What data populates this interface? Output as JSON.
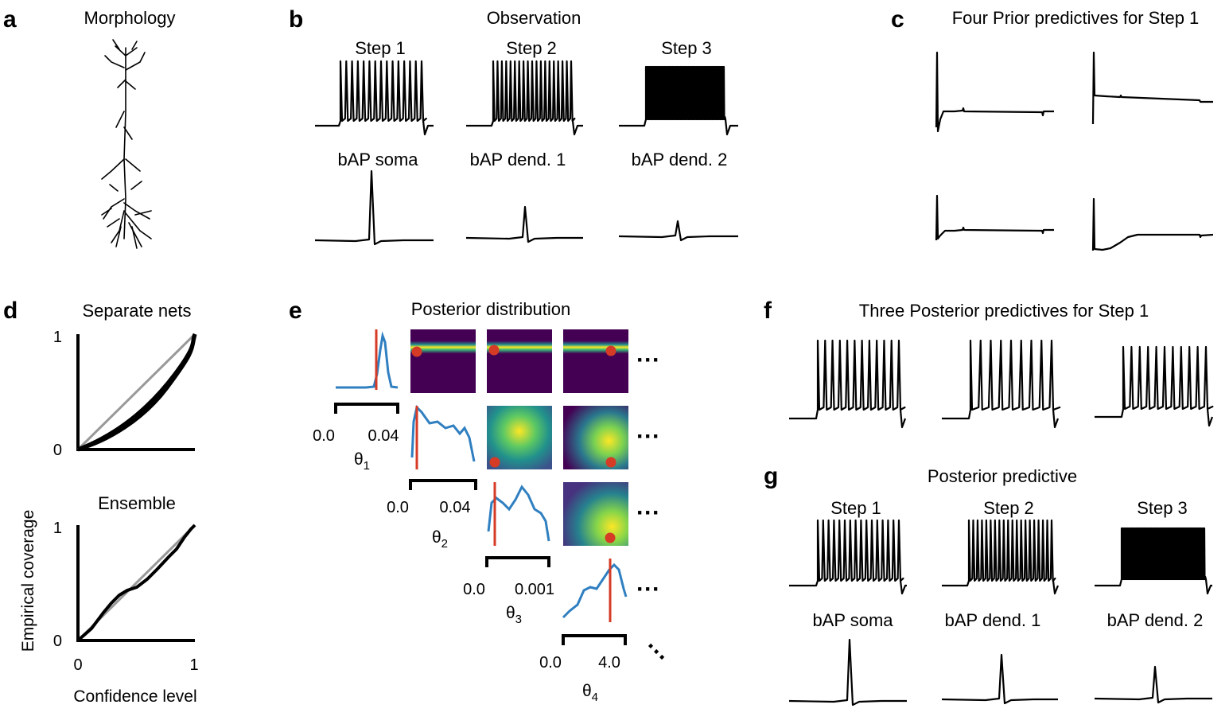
{
  "panels": {
    "a": {
      "label": "a",
      "title": "Morphology"
    },
    "b": {
      "label": "b",
      "title": "Observation",
      "steps": [
        "Step 1",
        "Step 2",
        "Step 3"
      ],
      "bap": [
        "bAP soma",
        "bAP dend. 1",
        "bAP dend. 2"
      ]
    },
    "c": {
      "label": "c",
      "title": "Four Prior predictives for Step 1"
    },
    "d": {
      "label": "d",
      "top_title": "Separate nets",
      "bottom_title": "Ensemble",
      "ylabel": "Empirical coverage",
      "xlabel": "Confidence level",
      "xticks": [
        "0",
        "1"
      ],
      "yticks": [
        "0",
        "1"
      ]
    },
    "e": {
      "label": "e",
      "title": "Posterior distribution",
      "params": [
        {
          "symbol": "θ",
          "sub": "1",
          "ticks": [
            "0.0",
            "0.04"
          ]
        },
        {
          "symbol": "θ",
          "sub": "2",
          "ticks": [
            "0.0",
            "0.04"
          ]
        },
        {
          "symbol": "θ",
          "sub": "3",
          "ticks": [
            "0.0",
            "0.001"
          ]
        },
        {
          "symbol": "θ",
          "sub": "4",
          "ticks": [
            "0.0",
            "4.0"
          ]
        }
      ],
      "ellipsis": "…",
      "colors": {
        "density": "#2f7fc1",
        "truth": "#d63b26",
        "heat_low": "#440154",
        "heat_high": "#fde725"
      }
    },
    "f": {
      "label": "f",
      "title": "Three Posterior predictives for Step 1"
    },
    "g": {
      "label": "g",
      "title": "Posterior predictive",
      "steps": [
        "Step 1",
        "Step 2",
        "Step 3"
      ],
      "bap": [
        "bAP soma",
        "bAP dend. 1",
        "bAP dend. 2"
      ]
    }
  }
}
